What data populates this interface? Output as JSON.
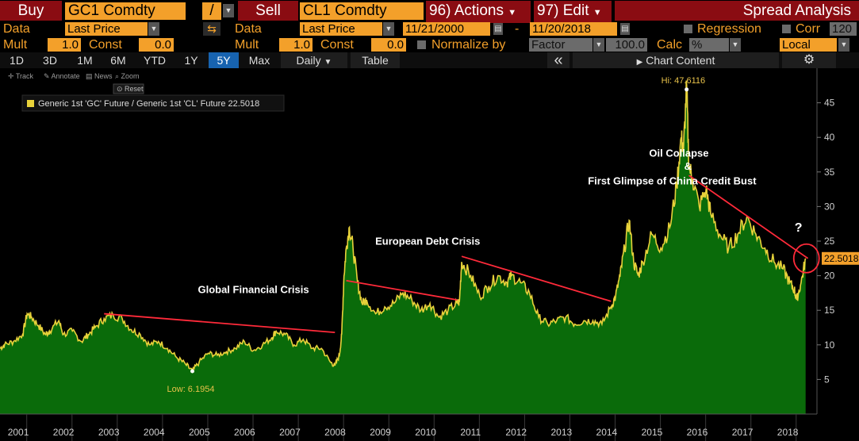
{
  "toolbar": {
    "buy_label": "Buy",
    "buy_ticker": "GC1 Comdty",
    "operator": "/",
    "sell_label": "Sell",
    "sell_ticker": "CL1 Comdty",
    "actions": "96) Actions",
    "edit": "97) Edit",
    "title": "Spread Analysis"
  },
  "row2": {
    "data_label_1": "Data",
    "field_1": "Last Price",
    "data_label_2": "Data",
    "field_2": "Last Price",
    "date_start": "11/21/2000",
    "date_sep": "-",
    "date_end": "11/20/2018",
    "regression": "Regression",
    "corr": "Corr",
    "corr_value": "120"
  },
  "row3": {
    "mult_label_1": "Mult",
    "mult_1": "1.0",
    "const_label_1": "Const",
    "const_1": "0.0",
    "mult_label_2": "Mult",
    "mult_2": "1.0",
    "const_label_2": "Const",
    "const_2": "0.0",
    "normalize": "Normalize by",
    "factor": "Factor",
    "factor_value": "100.0",
    "calc": "Calc",
    "calc_value": "%",
    "local": "Local"
  },
  "tabs": [
    "1D",
    "3D",
    "1M",
    "6M",
    "YTD",
    "1Y",
    "5Y",
    "Max"
  ],
  "frequency": "Daily",
  "table_label": "Table",
  "collapse_glyph": "«",
  "chart_content_label": "Chart Content",
  "tools": {
    "track": "Track",
    "annotate": "Annotate",
    "news": "News",
    "zoom": "Zoom",
    "reset": "Reset"
  },
  "colors": {
    "fill": "#0a6b0a",
    "line": "#e8d23a",
    "trend": "#ff2a3a",
    "accent": "#f3a02a"
  },
  "chart_data": {
    "type": "area",
    "legend": "Generic 1st 'GC' Future / Generic 1st 'CL' Future 22.5018",
    "last_value_label": "22.5018",
    "last_value": 22.5018,
    "high_label": "Hi: 47.6116",
    "high": {
      "x": 2016.07,
      "y": 47.6116
    },
    "low_label": "Low: 6.1954",
    "low": {
      "x": 2005.15,
      "y": 6.1954
    },
    "question_mark": "?",
    "yticks": [
      5,
      10,
      15,
      20,
      25,
      30,
      35,
      40,
      45
    ],
    "ylim": [
      0,
      50
    ],
    "xlim": [
      2000.9,
      2018.95
    ],
    "xticks": [
      {
        "label": "2001",
        "x": 2001.0
      },
      {
        "label": "2002",
        "x": 2002.0
      },
      {
        "label": "2003",
        "x": 2003.0
      },
      {
        "label": "2004",
        "x": 2004.0
      },
      {
        "label": "2005",
        "x": 2005.0
      },
      {
        "label": "2006",
        "x": 2006.0
      },
      {
        "label": "2007",
        "x": 2007.0
      },
      {
        "label": "2008",
        "x": 2008.0
      },
      {
        "label": "2009",
        "x": 2009.0
      },
      {
        "label": "2010",
        "x": 2010.0
      },
      {
        "label": "2011",
        "x": 2011.0
      },
      {
        "label": "2012",
        "x": 2012.0
      },
      {
        "label": "2013",
        "x": 2013.0
      },
      {
        "label": "2014",
        "x": 2014.0
      },
      {
        "label": "2015",
        "x": 2015.0
      },
      {
        "label": "2016",
        "x": 2016.0
      },
      {
        "label": "2017",
        "x": 2017.0
      },
      {
        "label": "2018",
        "x": 2018.0
      }
    ],
    "x": [
      2000.9,
      2001.0,
      2001.2,
      2001.4,
      2001.5,
      2001.6,
      2001.75,
      2001.9,
      2002.0,
      2002.2,
      2002.3,
      2002.5,
      2002.7,
      2002.85,
      2003.0,
      2003.2,
      2003.4,
      2003.6,
      2003.8,
      2004.0,
      2004.2,
      2004.4,
      2004.6,
      2004.8,
      2005.0,
      2005.15,
      2005.3,
      2005.5,
      2005.7,
      2005.9,
      2006.1,
      2006.3,
      2006.5,
      2006.7,
      2006.9,
      2007.0,
      2007.2,
      2007.4,
      2007.6,
      2007.8,
      2008.0,
      2008.2,
      2008.3,
      2008.4,
      2008.45,
      2008.5,
      2008.55,
      2008.62,
      2008.7,
      2008.8,
      2008.9,
      2009.0,
      2009.2,
      2009.4,
      2009.6,
      2009.8,
      2010.0,
      2010.2,
      2010.4,
      2010.6,
      2010.8,
      2011.0,
      2011.05,
      2011.1,
      2011.3,
      2011.5,
      2011.7,
      2011.9,
      2012.1,
      2012.2,
      2012.4,
      2012.6,
      2012.8,
      2013.0,
      2013.2,
      2013.4,
      2013.6,
      2013.8,
      2014.0,
      2014.2,
      2014.4,
      2014.5,
      2014.6,
      2014.7,
      2014.8,
      2014.9,
      2015.0,
      2015.1,
      2015.3,
      2015.5,
      2015.7,
      2015.85,
      2015.95,
      2016.0,
      2016.07,
      2016.12,
      2016.2,
      2016.35,
      2016.5,
      2016.6,
      2016.8,
      2017.0,
      2017.2,
      2017.4,
      2017.6,
      2017.8,
      2018.0,
      2018.2,
      2018.35,
      2018.45,
      2018.5,
      2018.6,
      2018.7
    ],
    "values": [
      9.5,
      10.0,
      10.5,
      11.5,
      14.5,
      14.0,
      12.8,
      11.5,
      12.0,
      13.5,
      11.5,
      12.0,
      10.5,
      11.5,
      12.5,
      13.8,
      14.3,
      13.8,
      12.2,
      11.5,
      10.0,
      10.5,
      9.5,
      8.2,
      7.2,
      6.2,
      7.5,
      8.8,
      8.5,
      9.0,
      9.5,
      10.5,
      9.2,
      10.0,
      11.0,
      12.0,
      11.5,
      10.0,
      10.8,
      9.5,
      9.5,
      7.5,
      7.0,
      8.5,
      11.5,
      20.0,
      24.0,
      27.0,
      24.0,
      19.0,
      16.0,
      16.5,
      14.5,
      15.5,
      16.0,
      17.5,
      16.5,
      15.0,
      16.0,
      14.0,
      15.0,
      16.0,
      16.2,
      22.0,
      20.0,
      17.0,
      18.5,
      20.0,
      19.0,
      20.0,
      19.0,
      17.5,
      14.0,
      13.0,
      13.5,
      14.0,
      13.0,
      13.5,
      13.5,
      13.0,
      15.5,
      17.0,
      20.0,
      24.0,
      28.0,
      22.0,
      20.0,
      22.0,
      26.0,
      24.0,
      27.0,
      33.0,
      40.0,
      38.0,
      47.6116,
      36.0,
      34.0,
      30.0,
      32.5,
      29.0,
      26.0,
      24.0,
      26.0,
      28.5,
      26.0,
      24.0,
      22.0,
      21.0,
      19.0,
      18.0,
      16.5,
      19.0,
      22.5018
    ],
    "trendlines": [
      [
        [
          2003.2,
          14.5
        ],
        [
          2008.3,
          11.8
        ]
      ],
      [
        [
          2008.55,
          19.3
        ],
        [
          2011.0,
          16.5
        ]
      ],
      [
        [
          2011.1,
          22.8
        ],
        [
          2014.4,
          16.3
        ]
      ],
      [
        [
          2016.12,
          34.5
        ],
        [
          2018.75,
          22.5018
        ]
      ]
    ],
    "annotations": [
      {
        "text": "Global Financial Crisis",
        "x": 2006.5,
        "y": 17.5
      },
      {
        "text": "European Debt Crisis",
        "x": 2010.35,
        "y": 24.5
      },
      {
        "text": "Oil Collapse",
        "x": 2015.9,
        "y": 37.2
      },
      {
        "text": "&",
        "x": 2016.1,
        "y": 35.3
      },
      {
        "text": "First Glimpse of China Credit Bust",
        "x": 2015.75,
        "y": 33.2
      }
    ]
  }
}
